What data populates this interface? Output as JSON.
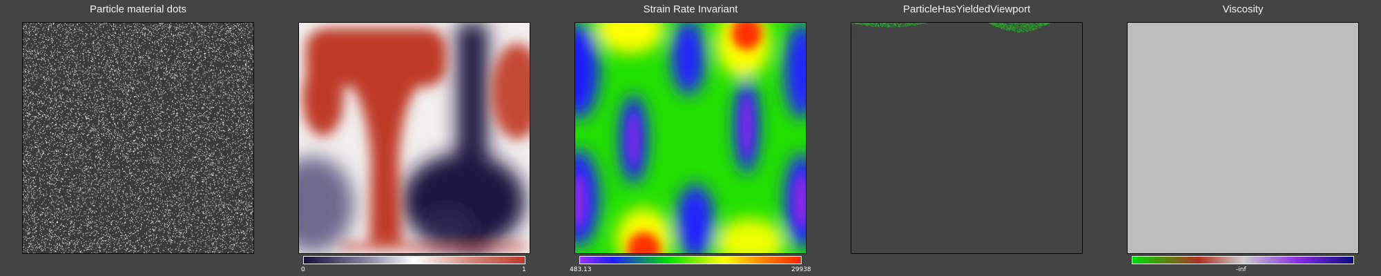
{
  "viewports": [
    {
      "title": "Particle material dots"
    },
    {
      "title": "",
      "colorbar": {
        "min": "0",
        "max": "1"
      }
    },
    {
      "title": "Strain Rate Invariant",
      "colorbar": {
        "min": "483.13",
        "max": "29938"
      }
    },
    {
      "title": "ParticleHasYieldedViewport"
    },
    {
      "title": "Viscosity",
      "colorbar": {
        "center": "-inf"
      }
    }
  ],
  "colors": {
    "background": "#444444",
    "frame_border": "#000000",
    "dots": "#ffffff",
    "dots_bg": "#3a3a3a",
    "material_red": "#c0392b",
    "material_navy": "#14103a",
    "yield_green": "#22aa22",
    "viscosity_fill": "#bdbdbd"
  }
}
